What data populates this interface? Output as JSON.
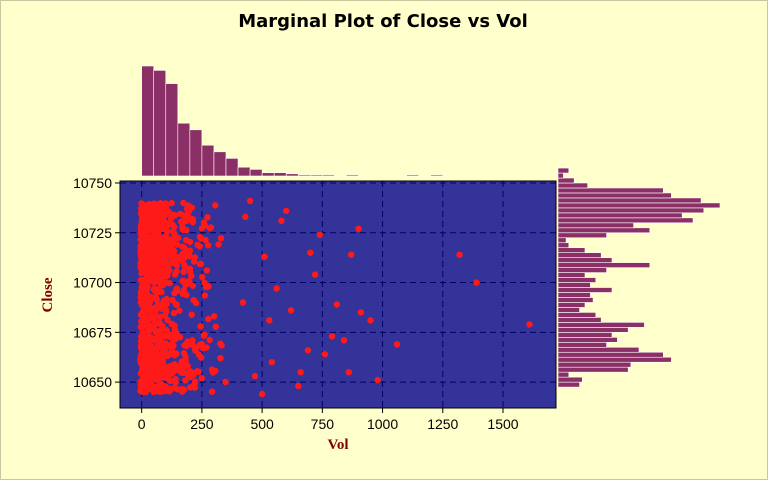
{
  "colors": {
    "background": "#ffffcc",
    "plot_area": "#333399",
    "points": "#ff1a1a",
    "bars": "#8b3066",
    "grid": "#000066",
    "axis_label": "#800000"
  },
  "chart_data": {
    "type": "scatter",
    "title": "Marginal Plot of Close vs Vol",
    "xlabel": "Vol",
    "ylabel": "Close",
    "xlim": [
      -90,
      1720
    ],
    "ylim": [
      10637,
      10751
    ],
    "x_ticks": [
      0,
      250,
      500,
      750,
      1000,
      1250,
      1500
    ],
    "x_tick_labels": [
      "0",
      "250",
      "500",
      "750",
      "1000",
      "1250",
      "1500"
    ],
    "y_ticks": [
      10650,
      10675,
      10700,
      10725,
      10750
    ],
    "y_tick_labels": [
      "10650",
      "10675",
      "10700",
      "10725",
      "10750"
    ],
    "grid": true,
    "marginal_histograms": true,
    "outlier_points": [
      {
        "x": 1320,
        "y": 10714
      },
      {
        "x": 1390,
        "y": 10700
      },
      {
        "x": 1610,
        "y": 10679
      },
      {
        "x": 1060,
        "y": 10669
      },
      {
        "x": 980,
        "y": 10651
      },
      {
        "x": 910,
        "y": 10685
      },
      {
        "x": 950,
        "y": 10681
      },
      {
        "x": 900,
        "y": 10727
      },
      {
        "x": 870,
        "y": 10714
      },
      {
        "x": 860,
        "y": 10655
      },
      {
        "x": 840,
        "y": 10671
      },
      {
        "x": 810,
        "y": 10689
      },
      {
        "x": 790,
        "y": 10673
      },
      {
        "x": 760,
        "y": 10664
      },
      {
        "x": 740,
        "y": 10724
      },
      {
        "x": 720,
        "y": 10704
      },
      {
        "x": 700,
        "y": 10715
      },
      {
        "x": 690,
        "y": 10666
      },
      {
        "x": 660,
        "y": 10655
      },
      {
        "x": 650,
        "y": 10648
      },
      {
        "x": 620,
        "y": 10686
      },
      {
        "x": 600,
        "y": 10736
      },
      {
        "x": 580,
        "y": 10731
      },
      {
        "x": 560,
        "y": 10697
      },
      {
        "x": 540,
        "y": 10660
      },
      {
        "x": 530,
        "y": 10681
      },
      {
        "x": 510,
        "y": 10713
      },
      {
        "x": 500,
        "y": 10644
      },
      {
        "x": 470,
        "y": 10653
      },
      {
        "x": 450,
        "y": 10741
      },
      {
        "x": 430,
        "y": 10733
      },
      {
        "x": 420,
        "y": 10690
      }
    ],
    "x_histogram": {
      "bin_width": 50,
      "bin_start": 0,
      "counts": [
        100,
        96,
        84,
        48,
        42,
        28,
        22,
        16,
        8,
        6,
        3,
        3,
        2,
        1,
        1,
        1,
        0,
        1,
        0,
        0,
        0,
        0,
        1,
        0,
        1
      ]
    },
    "y_histogram": {
      "bin_width": 2.5,
      "bin_start": 10647.5,
      "counts": [
        8,
        9,
        4,
        26,
        27,
        42,
        39,
        30,
        18,
        22,
        20,
        26,
        32,
        16,
        14,
        8,
        10,
        13,
        12,
        20,
        12,
        14,
        10,
        18,
        34,
        20,
        16,
        10,
        4,
        3,
        18,
        34,
        28,
        50,
        46,
        54,
        60,
        53,
        42,
        39,
        11,
        6,
        2,
        4
      ]
    }
  }
}
